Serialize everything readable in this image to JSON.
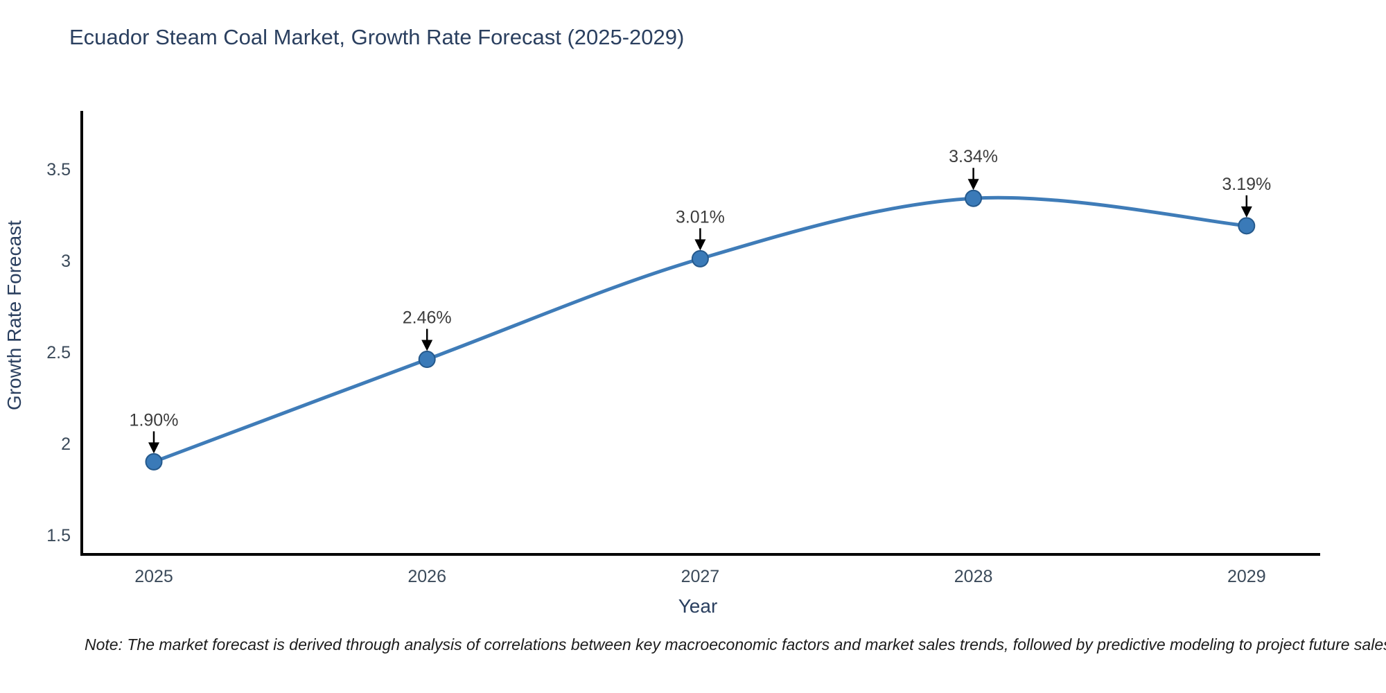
{
  "chart_data": {
    "type": "line",
    "title": "Ecuador Steam Coal Market, Growth Rate Forecast (2025-2029)",
    "xlabel": "Year",
    "ylabel": "Growth Rate Forecast",
    "categories": [
      "2025",
      "2026",
      "2027",
      "2028",
      "2029"
    ],
    "series": [
      {
        "name": "Growth Rate Forecast",
        "values": [
          1.9,
          2.46,
          3.01,
          3.34,
          3.19
        ],
        "point_labels": [
          "1.90%",
          "2.46%",
          "3.01%",
          "3.34%",
          "3.19%"
        ]
      }
    ],
    "ytick_labels": [
      "1.5",
      "2",
      "2.5",
      "3",
      "3.5"
    ],
    "yticks": [
      1.5,
      2,
      2.5,
      3,
      3.5
    ],
    "ylim": [
      1.33,
      3.77
    ],
    "grid": false,
    "legend_position": "none",
    "line_shape": "spline",
    "annotations_have_arrows": true,
    "colors": {
      "line": "#3f7cb8",
      "marker_fill": "#3a7ab8",
      "marker_edge": "#25598c",
      "axis_line": "#000000",
      "title_text": "#2a3f5f",
      "axis_title_text": "#2a3f5f",
      "tick_text": "#3b4a5a",
      "annotation_text": "#3d3d3d",
      "arrow": "#000000",
      "background": "#ffffff"
    }
  },
  "footnote": "Note: The market forecast is derived through analysis of correlations between key macroeconomic factors and market sales trends, followed by predictive modeling to project future sales"
}
